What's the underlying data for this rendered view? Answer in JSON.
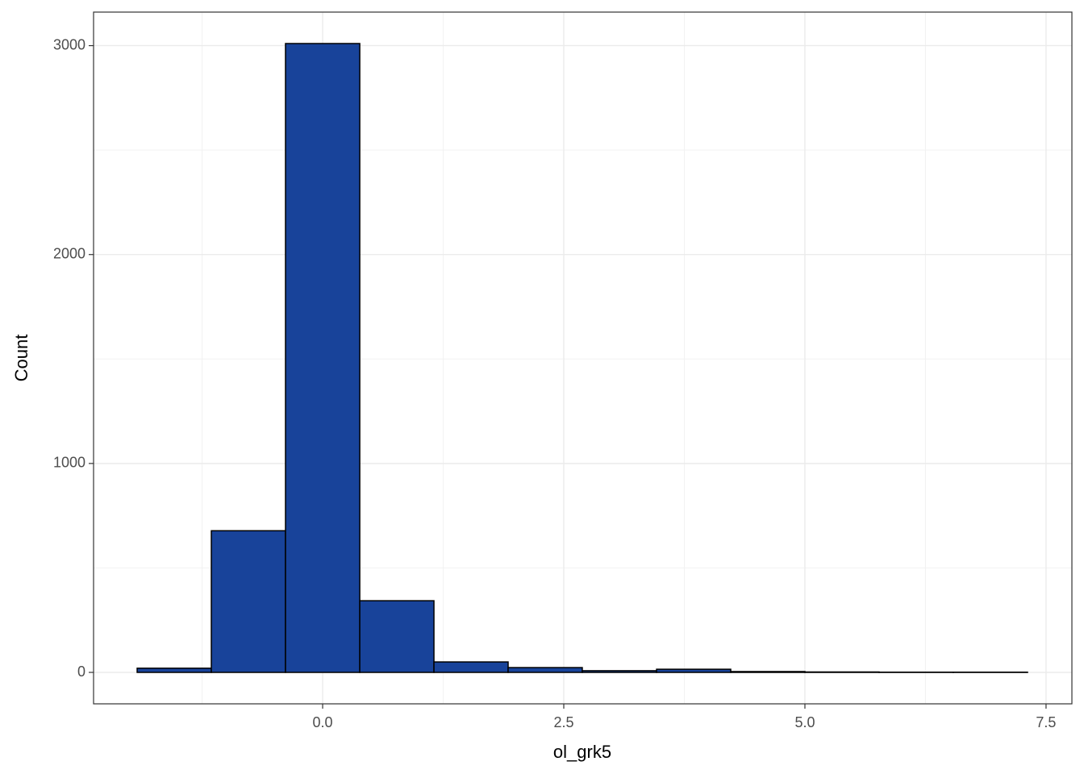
{
  "chart_data": {
    "type": "histogram",
    "x_label": "ol_grk5",
    "y_label": "Count",
    "bins": [
      -1.923,
      -1.154,
      -0.385,
      0.385,
      1.154,
      1.923,
      2.692,
      3.462,
      4.231,
      5.0,
      5.769,
      6.538,
      7.308
    ],
    "counts": [
      20,
      678,
      3010,
      343,
      50,
      23,
      8,
      15,
      4,
      2,
      1,
      1
    ],
    "color": "#18439a",
    "edge_color": "#000000",
    "xlim": [
      -2.375,
      7.768
    ],
    "ylim": [
      -150.5,
      3160.5
    ],
    "xticks": [
      {
        "value": 0,
        "label": "0.0"
      },
      {
        "value": 2.5,
        "label": "2.5"
      },
      {
        "value": 5,
        "label": "5.0"
      },
      {
        "value": 7.5,
        "label": "7.5"
      }
    ],
    "yticks": [
      0,
      1000,
      2000,
      3000
    ],
    "xminor": [
      -1.25,
      1.25,
      3.75,
      6.25
    ],
    "yminor": [
      500,
      1500,
      2500
    ],
    "grid": true
  }
}
